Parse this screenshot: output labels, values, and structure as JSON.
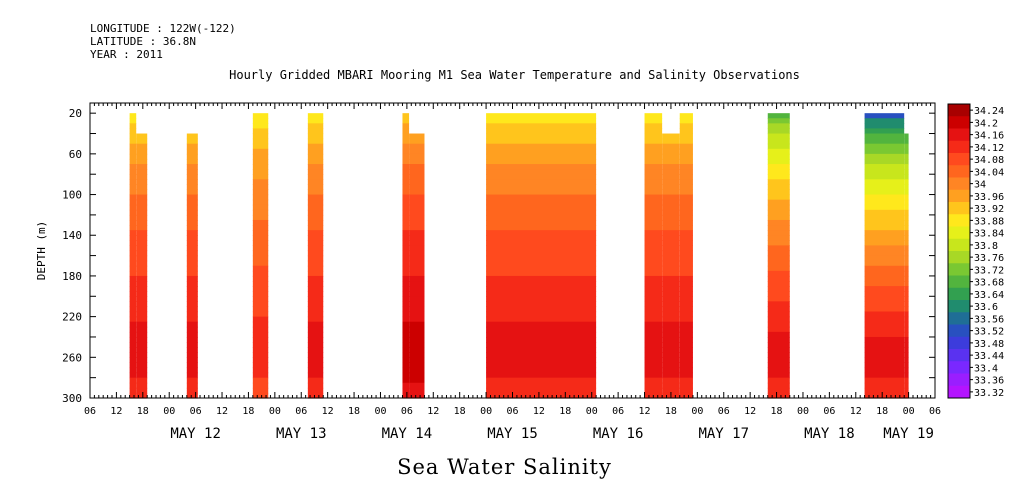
{
  "header": {
    "longitude": "LONGITUDE : 122W(-122)",
    "latitude": "LATITUDE : 36.8N",
    "year": "YEAR : 2011"
  },
  "footer_title": "Sea Water Salinity",
  "chart_data": {
    "type": "heatmap",
    "title": "Hourly Gridded MBARI Mooring M1 Sea Water Temperature and Salinity Observations",
    "xlabel": "",
    "ylabel": "DEPTH (m)",
    "x_unit": "hours since 2011-05-11 06:00",
    "xlim": [
      0,
      192
    ],
    "ylim": [
      300,
      0
    ],
    "y_ticks": [
      20,
      60,
      100,
      140,
      180,
      220,
      260,
      300
    ],
    "x_hour_ticks": [
      "06",
      "12",
      "18",
      "00",
      "06",
      "12",
      "18",
      "00",
      "06",
      "12",
      "18",
      "00",
      "06",
      "12",
      "18",
      "00",
      "06",
      "12",
      "18",
      "00",
      "06",
      "12",
      "18",
      "00",
      "06",
      "12",
      "18",
      "00",
      "06",
      "12",
      "18",
      "00",
      "06"
    ],
    "date_labels": [
      {
        "label": "MAY 12",
        "hour": 24
      },
      {
        "label": "MAY 13",
        "hour": 48
      },
      {
        "label": "MAY 14",
        "hour": 72
      },
      {
        "label": "MAY 15",
        "hour": 96
      },
      {
        "label": "MAY 16",
        "hour": 120
      },
      {
        "label": "MAY 17",
        "hour": 144
      },
      {
        "label": "MAY 18",
        "hour": 168
      },
      {
        "label": "MAY 19",
        "hour": 186
      }
    ],
    "colorbar": {
      "levels": [
        "34.24",
        "34.2",
        "34.16",
        "34.12",
        "34.08",
        "34.04",
        "34",
        "33.96",
        "33.92",
        "33.88",
        "33.84",
        "33.8",
        "33.76",
        "33.72",
        "33.68",
        "33.64",
        "33.6",
        "33.56",
        "33.52",
        "33.48",
        "33.44",
        "33.4",
        "33.36",
        "33.32"
      ],
      "colors": [
        "#a80000",
        "#cc0000",
        "#e51212",
        "#f52a18",
        "#ff4a1e",
        "#ff661e",
        "#ff8524",
        "#ffa020",
        "#ffc51c",
        "#ffe81c",
        "#e6f01a",
        "#c8e61c",
        "#a8d826",
        "#7ac832",
        "#52b43e",
        "#32a050",
        "#208c6e",
        "#1f6e96",
        "#2850c0",
        "#3c3cdc",
        "#5a32f0",
        "#7a28ff",
        "#9a1eff",
        "#b414ff"
      ]
    },
    "segments": [
      {
        "x0": 9,
        "x1": 13,
        "top_step": [
          [
            9,
            10.5,
            20
          ],
          [
            10.5,
            13,
            40
          ]
        ],
        "surface": 33.84,
        "deep": 34.16
      },
      {
        "x0": 22,
        "x1": 24.5,
        "top_step": [
          [
            22,
            24.5,
            40
          ]
        ],
        "surface": 33.84,
        "deep": 34.16
      },
      {
        "x0": 37,
        "x1": 40.5,
        "top_step": [
          [
            37,
            40.5,
            20
          ]
        ],
        "surface": 33.84,
        "deep": 34.12
      },
      {
        "x0": 49.5,
        "x1": 53,
        "top_step": [
          [
            49.5,
            53,
            20
          ]
        ],
        "surface": 33.84,
        "deep": 34.16
      },
      {
        "x0": 71,
        "x1": 76,
        "top_step": [
          [
            71,
            72.5,
            20
          ],
          [
            72.5,
            76,
            40
          ]
        ],
        "surface": 33.88,
        "deep": 34.2
      },
      {
        "x0": 90,
        "x1": 115,
        "top_step": [
          [
            90,
            115,
            20
          ]
        ],
        "surface": 33.84,
        "deep": 34.16
      },
      {
        "x0": 126,
        "x1": 137,
        "top_step": [
          [
            126,
            130,
            20
          ],
          [
            130,
            134,
            40
          ],
          [
            134,
            137,
            20
          ]
        ],
        "surface": 33.84,
        "deep": 34.16
      },
      {
        "x0": 154,
        "x1": 159,
        "top_step": [
          [
            154,
            159,
            20
          ]
        ],
        "surface": 33.64,
        "deep": 34.16
      },
      {
        "x0": 176,
        "x1": 186,
        "top_step": [
          [
            176,
            185,
            20
          ],
          [
            185,
            186,
            40
          ]
        ],
        "surface": 33.48,
        "deep": 34.16
      }
    ],
    "grid": false,
    "legend": "right colorbar"
  }
}
